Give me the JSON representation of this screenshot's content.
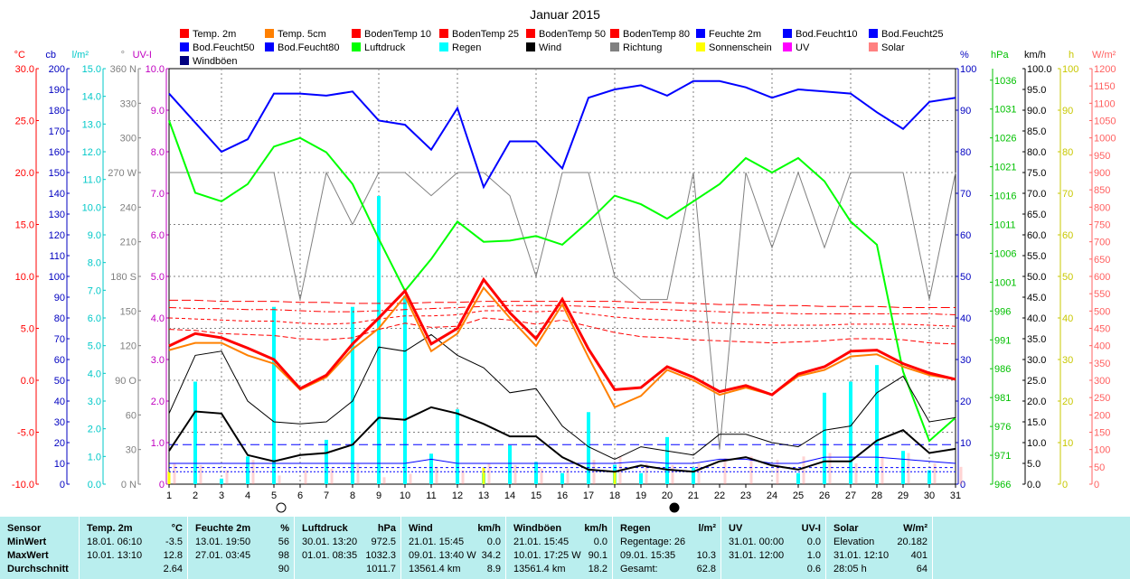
{
  "chart_data": {
    "type": "line",
    "title": "Januar 2015",
    "x": [
      1,
      2,
      3,
      4,
      5,
      6,
      7,
      8,
      9,
      10,
      11,
      12,
      13,
      14,
      15,
      16,
      17,
      18,
      19,
      20,
      21,
      22,
      23,
      24,
      25,
      26,
      27,
      28,
      29,
      30,
      31
    ],
    "xlim": [
      1,
      31
    ],
    "grid": true,
    "legend_position": "top",
    "axes": [
      {
        "unit": "°C",
        "min": -10,
        "max": 30,
        "ticks": [
          "30.0",
          "25.0",
          "20.0",
          "15.0",
          "10.0",
          "5.0",
          "0.0",
          "-5.0",
          "-10.0"
        ],
        "color": "#ff0000"
      },
      {
        "unit": "cb",
        "min": 0,
        "max": 200,
        "ticks": [
          "200",
          "190",
          "180",
          "170",
          "160",
          "150",
          "140",
          "130",
          "120",
          "110",
          "100",
          "90",
          "80",
          "70",
          "60",
          "50",
          "40",
          "30",
          "20",
          "10",
          "0"
        ],
        "color": "#0000c0"
      },
      {
        "unit": "l/m²",
        "min": 0,
        "max": 15,
        "ticks": [
          "15.0",
          "14.0",
          "13.0",
          "12.0",
          "11.0",
          "10.0",
          "9.0",
          "8.0",
          "7.0",
          "6.0",
          "5.0",
          "4.0",
          "3.0",
          "2.0",
          "1.0",
          "0.0"
        ],
        "color": "#00c8c8"
      },
      {
        "unit": "°",
        "min": 0,
        "max": 360,
        "ticks": [
          "360 N",
          "330",
          "300",
          "270 W",
          "240",
          "210",
          "180 S",
          "150",
          "120",
          "90 O",
          "60",
          "30",
          "0 N"
        ],
        "color": "#808080"
      },
      {
        "unit": "UV-I",
        "min": 0,
        "max": 10,
        "ticks": [
          "10.0",
          "9.0",
          "8.0",
          "7.0",
          "6.0",
          "5.0",
          "4.0",
          "3.0",
          "2.0",
          "1.0",
          "0"
        ],
        "color": "#c000c0"
      },
      {
        "unit": "%",
        "min": 0,
        "max": 100,
        "ticks": [
          "100",
          "90",
          "80",
          "70",
          "60",
          "50",
          "40",
          "30",
          "20",
          "10",
          "0"
        ],
        "color": "#0000c0"
      },
      {
        "unit": "hPa",
        "min": 966,
        "max": 1038,
        "ticks": [
          "1036",
          "1031",
          "1026",
          "1021",
          "1016",
          "1011",
          "1006",
          "1001",
          "996",
          "991",
          "986",
          "981",
          "976",
          "971",
          "966"
        ],
        "color": "#00c000"
      },
      {
        "unit": "km/h",
        "min": 0,
        "max": 100,
        "ticks": [
          "100.0",
          "95.0",
          "90.0",
          "85.0",
          "80.0",
          "75.0",
          "70.0",
          "65.0",
          "60.0",
          "55.0",
          "50.0",
          "45.0",
          "40.0",
          "35.0",
          "30.0",
          "25.0",
          "20.0",
          "15.0",
          "10.0",
          "5.0",
          "0.0"
        ],
        "color": "#000000"
      },
      {
        "unit": "h",
        "min": 0,
        "max": 100,
        "ticks": [
          "100",
          "90",
          "80",
          "70",
          "60",
          "50",
          "40",
          "30",
          "20",
          "10",
          "0"
        ],
        "color": "#c8c800"
      },
      {
        "unit": "W/m²",
        "min": 0,
        "max": 1200,
        "ticks": [
          "1200",
          "1150",
          "1100",
          "1050",
          "1000",
          "950",
          "900",
          "850",
          "800",
          "750",
          "700",
          "650",
          "600",
          "550",
          "500",
          "450",
          "400",
          "350",
          "300",
          "250",
          "200",
          "150",
          "100",
          "50",
          "0"
        ],
        "color": "#ff6060"
      }
    ],
    "legend": [
      {
        "name": "Temp. 2m",
        "color": "#ff0000"
      },
      {
        "name": "Temp. 5cm",
        "color": "#ff8000"
      },
      {
        "name": "BodenTemp 10",
        "color": "#ff0000"
      },
      {
        "name": "BodenTemp 25",
        "color": "#ff0000"
      },
      {
        "name": "BodenTemp 50",
        "color": "#ff0000"
      },
      {
        "name": "BodenTemp 80",
        "color": "#ff0000"
      },
      {
        "name": "Feuchte 2m",
        "color": "#0000ff"
      },
      {
        "name": "Bod.Feucht10",
        "color": "#0000ff"
      },
      {
        "name": "Bod.Feucht25",
        "color": "#0000ff"
      },
      {
        "name": "Bod.Feucht50",
        "color": "#0000ff"
      },
      {
        "name": "Bod.Feucht80",
        "color": "#0000ff"
      },
      {
        "name": "Luftdruck",
        "color": "#00ff00"
      },
      {
        "name": "Regen",
        "color": "#00ffff"
      },
      {
        "name": "Wind",
        "color": "#000000"
      },
      {
        "name": "Richtung",
        "color": "#808080"
      },
      {
        "name": "Sonnenschein",
        "color": "#ffff00"
      },
      {
        "name": "UV",
        "color": "#ff00ff"
      },
      {
        "name": "Solar",
        "color": "#ff8080"
      },
      {
        "name": "Windböen",
        "color": "#000080"
      }
    ],
    "series": [
      {
        "name": "Temp. 2m",
        "color": "#ff0000",
        "axis": 0,
        "width": 3,
        "values": [
          3.3,
          4.5,
          4.1,
          3.1,
          2.0,
          -0.8,
          0.5,
          3.5,
          6.0,
          8.6,
          3.5,
          5.0,
          9.7,
          6.5,
          4.0,
          7.8,
          3.0,
          -0.9,
          -0.7,
          1.3,
          0.3,
          -1.1,
          -0.5,
          -1.4,
          0.6,
          1.3,
          2.8,
          2.9,
          1.6,
          0.7,
          0.1
        ]
      },
      {
        "name": "Temp. 5cm",
        "color": "#ff8000",
        "axis": 0,
        "width": 2,
        "values": [
          2.9,
          3.6,
          3.6,
          2.4,
          1.6,
          -0.9,
          0.3,
          3.0,
          5.0,
          8.1,
          2.8,
          4.5,
          8.9,
          6.0,
          3.3,
          7.3,
          2.2,
          -2.6,
          -1.5,
          1.0,
          0.0,
          -1.4,
          -0.7,
          -1.4,
          0.4,
          1.0,
          2.3,
          2.5,
          1.3,
          0.5,
          0.1
        ]
      },
      {
        "name": "Windböen",
        "color": "#000000",
        "axis": 7,
        "width": 1,
        "values": [
          17,
          31,
          32,
          20,
          15,
          14.5,
          15,
          20,
          33,
          32,
          36,
          31,
          28,
          22,
          23,
          14,
          9,
          6,
          9,
          8,
          7,
          12,
          12,
          10,
          9,
          13,
          14,
          22,
          26,
          15,
          16
        ]
      },
      {
        "name": "Wind",
        "color": "#000000",
        "axis": 7,
        "width": 2,
        "values": [
          8,
          17.5,
          17,
          7,
          5.5,
          7,
          7.5,
          9.5,
          16,
          15.5,
          18.5,
          17,
          14.5,
          11.5,
          11.5,
          6.5,
          3.5,
          3,
          4.5,
          3.5,
          3,
          5.5,
          6.5,
          4.5,
          3.5,
          5.5,
          5.5,
          10.5,
          13,
          7.5,
          8.5
        ]
      },
      {
        "name": "Feuchte 2m",
        "color": "#0000ff",
        "axis": 5,
        "width": 2,
        "values": [
          94,
          87,
          80,
          83,
          94,
          94,
          93.5,
          94.5,
          87.5,
          86.5,
          80.5,
          90.5,
          71.5,
          82.5,
          82.5,
          76,
          93,
          95,
          96,
          93.5,
          97,
          97,
          95.5,
          93,
          95,
          94.5,
          94,
          89.5,
          85.5,
          92,
          93
        ]
      },
      {
        "name": "Luftdruck",
        "color": "#00ff00",
        "axis": 6,
        "width": 2,
        "values": [
          1029,
          1016.5,
          1015,
          1018,
          1024.5,
          1026,
          1023.5,
          1018,
          1008.5,
          999.5,
          1005,
          1011.5,
          1008,
          1008.2,
          1009,
          1007.5,
          1011.5,
          1016,
          1014.5,
          1012,
          1015,
          1018,
          1022.5,
          1020,
          1022.5,
          1018.5,
          1011.5,
          1007.5,
          985.5,
          973.5,
          977.5
        ]
      },
      {
        "name": "Richtung",
        "color": "#808080",
        "axis": 3,
        "width": 1,
        "values": [
          270,
          270,
          270,
          270,
          270,
          160,
          270,
          225,
          270,
          270,
          250,
          270,
          270,
          250,
          180,
          270,
          270,
          180,
          160,
          160,
          270,
          30,
          270,
          205,
          270,
          205,
          270,
          270,
          270,
          160,
          270
        ]
      },
      {
        "name": "BodenTemp 10",
        "color": "#ff0000",
        "axis": 0,
        "width": 1,
        "dash": "6,3",
        "values": [
          4.9,
          4.8,
          4.5,
          4.4,
          4.3,
          4.0,
          3.9,
          4.1,
          4.9,
          5.5,
          5.1,
          5.2,
          6.0,
          5.8,
          5.4,
          5.8,
          5.2,
          4.6,
          4.2,
          4.1,
          3.9,
          3.8,
          3.7,
          3.6,
          3.7,
          3.8,
          4.0,
          4.0,
          3.9,
          3.6,
          3.5
        ]
      },
      {
        "name": "BodenTemp 25",
        "color": "#ff0000",
        "axis": 0,
        "width": 1,
        "dash": "4,3",
        "values": [
          6.0,
          5.9,
          5.8,
          5.7,
          5.7,
          5.5,
          5.4,
          5.5,
          5.9,
          6.2,
          6.2,
          6.3,
          6.7,
          6.7,
          6.6,
          6.7,
          6.4,
          6.1,
          5.9,
          5.8,
          5.7,
          5.5,
          5.4,
          5.3,
          5.3,
          5.3,
          5.4,
          5.4,
          5.4,
          5.3,
          5.2
        ]
      },
      {
        "name": "BodenTemp 50",
        "color": "#ff0000",
        "axis": 0,
        "width": 1,
        "dash": "8,3,2,3",
        "values": [
          7.0,
          6.9,
          6.9,
          6.8,
          6.8,
          6.7,
          6.6,
          6.6,
          6.7,
          6.8,
          6.9,
          7.0,
          7.1,
          7.2,
          7.2,
          7.2,
          7.1,
          7.0,
          6.9,
          6.8,
          6.7,
          6.6,
          6.5,
          6.5,
          6.4,
          6.4,
          6.4,
          6.4,
          6.4,
          6.4,
          6.3
        ]
      },
      {
        "name": "BodenTemp 80",
        "color": "#ff0000",
        "axis": 0,
        "width": 1,
        "dash": "10,4",
        "values": [
          7.7,
          7.7,
          7.6,
          7.6,
          7.6,
          7.5,
          7.5,
          7.4,
          7.4,
          7.4,
          7.5,
          7.5,
          7.6,
          7.6,
          7.6,
          7.6,
          7.6,
          7.6,
          7.5,
          7.5,
          7.4,
          7.3,
          7.3,
          7.2,
          7.2,
          7.1,
          7.1,
          7.1,
          7.0,
          7.0,
          7.0
        ]
      },
      {
        "name": "Bod.Feucht10",
        "color": "#0000ff",
        "axis": 1,
        "width": 1,
        "dash": "10,5",
        "values": [
          19,
          19,
          19,
          19,
          19,
          19,
          19,
          19,
          19,
          19,
          19,
          19,
          19,
          19,
          19,
          19,
          19,
          19,
          19,
          19,
          19,
          19,
          19,
          19,
          19,
          19,
          19,
          19,
          19,
          19,
          19
        ]
      },
      {
        "name": "Bod.Feucht25",
        "color": "#0000ff",
        "axis": 1,
        "width": 1,
        "dash": "3,3",
        "values": [
          8,
          8,
          8,
          8,
          8,
          8,
          8,
          8,
          8,
          8,
          8,
          8,
          8,
          8,
          8,
          8,
          8,
          8,
          8,
          8,
          8,
          8,
          8,
          8,
          8,
          8,
          8,
          8,
          8,
          8,
          8
        ]
      },
      {
        "name": "Bod.Feucht50",
        "color": "#0000ff",
        "axis": 1,
        "width": 1,
        "dash": "2,2",
        "values": [
          6,
          6,
          6,
          6,
          6,
          6,
          6,
          6,
          6,
          6,
          6,
          6,
          6,
          6,
          6,
          6,
          6,
          6,
          6,
          6,
          6,
          6,
          6,
          6,
          6,
          6,
          6,
          6,
          6,
          6,
          6
        ]
      },
      {
        "name": "Bod.Feucht80",
        "color": "#0000ff",
        "axis": 1,
        "width": 1,
        "values": [
          10,
          10,
          10,
          10,
          10,
          10,
          10,
          10,
          10,
          10,
          12,
          10,
          10,
          10,
          10,
          10,
          10,
          10,
          11,
          10,
          10,
          12,
          12,
          10,
          10,
          13,
          13,
          13,
          12,
          11,
          10
        ]
      }
    ],
    "bars": [
      {
        "name": "Regen",
        "color": "#00ffff",
        "axis": 2,
        "values": [
          0,
          3.7,
          0.2,
          1.0,
          6.4,
          0,
          1.6,
          6.4,
          10.4,
          6.8,
          1.1,
          2.7,
          0.4,
          1.4,
          0.8,
          0.4,
          2.6,
          0.7,
          0.4,
          1.7,
          0.6,
          0,
          0,
          0,
          0.4,
          3.3,
          3.7,
          4.3,
          1.2,
          0.5,
          0
        ]
      },
      {
        "name": "Sonnenschein",
        "color": "#ffff00",
        "axis": 8,
        "values": [
          3,
          0,
          0,
          0,
          0,
          0,
          0,
          0,
          0,
          0,
          0,
          0,
          4,
          0,
          0,
          0,
          0,
          3,
          0,
          0,
          0,
          0,
          0,
          0,
          0,
          0,
          0,
          0,
          0,
          0,
          0
        ]
      },
      {
        "name": "Solar",
        "color": "#ff8080",
        "axis": 9,
        "values": [
          60,
          55,
          40,
          70,
          25,
          40,
          45,
          60,
          20,
          30,
          50,
          40,
          60,
          55,
          45,
          45,
          70,
          80,
          60,
          55,
          60,
          75,
          80,
          70,
          80,
          90,
          60,
          80,
          90,
          60,
          50
        ]
      }
    ],
    "moon_markers": [
      {
        "day": 5,
        "phase": "full"
      },
      {
        "day": 20,
        "phase": "new"
      }
    ]
  },
  "stats": {
    "row_labels": [
      "Sensor",
      "MinWert",
      "MaxWert",
      "Durchschnitt"
    ],
    "columns": [
      {
        "title": "Temp. 2m",
        "unit": "°C",
        "min_time": "18.01.  06:10",
        "min_val": "-3.5",
        "max_time": "10.01.  13:10",
        "max_val": "12.8",
        "avg": "2.64"
      },
      {
        "title": "Feuchte 2m",
        "unit": "%",
        "min_time": "13.01.  19:50",
        "min_val": "56",
        "max_time": "27.01.  03:45",
        "max_val": "98",
        "avg": "90"
      },
      {
        "title": "Luftdruck",
        "unit": "hPa",
        "min_time": "30.01.  13:20",
        "min_val": "972.5",
        "max_time": "01.01.  08:35",
        "max_val": "1032.3",
        "avg": "1011.7"
      },
      {
        "title": "Wind",
        "unit": "km/h",
        "min_time": "21.01.  15:45",
        "min_val": "0.0",
        "max_time": "09.01.  13:40  W",
        "max_val": "34.2",
        "avg_label": "13561.4 km",
        "avg": "8.9"
      },
      {
        "title": "Windböen",
        "unit": "km/h",
        "min_time": "21.01.  15:45",
        "min_val": "0.0",
        "max_time": "10.01.  17:25  W",
        "max_val": "90.1",
        "avg_label": "13561.4 km",
        "avg": "18.2"
      },
      {
        "title": "Regen",
        "unit": "l/m²",
        "min_time": "Regentage: 26",
        "min_val": "",
        "max_time": "09.01.  15:35",
        "max_val": "10.3",
        "avg_label": "Gesamt:",
        "avg": "62.8"
      },
      {
        "title": "UV",
        "unit": "UV-I",
        "min_time": "31.01.  00:00",
        "min_val": "0.0",
        "max_time": "31.01.  12:00",
        "max_val": "1.0",
        "avg": "0.6"
      },
      {
        "title": "Solar",
        "unit": "W/m²",
        "min_time": "Elevation",
        "min_val": "20.182",
        "max_time": "31.01.  12:10",
        "max_val": "401",
        "avg_label": "28:05 h",
        "avg": "64"
      }
    ]
  }
}
